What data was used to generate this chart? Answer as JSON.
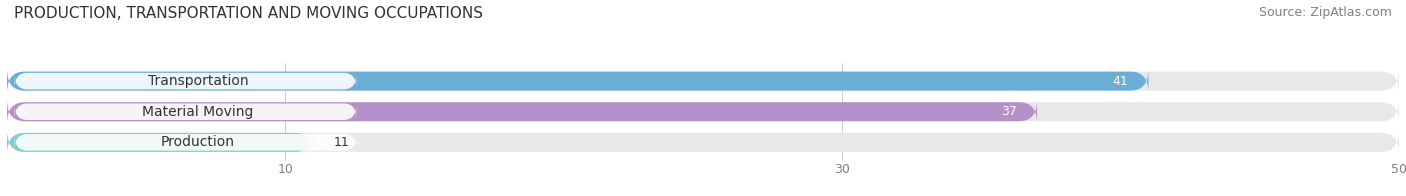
{
  "title": "PRODUCTION, TRANSPORTATION AND MOVING OCCUPATIONS",
  "source": "Source: ZipAtlas.com",
  "categories": [
    "Transportation",
    "Material Moving",
    "Production"
  ],
  "values": [
    41,
    37,
    11
  ],
  "bar_colors": [
    "#6aaed6",
    "#b490c8",
    "#7ececa"
  ],
  "bar_bg_color": "#e8e8e8",
  "xlim_min": 0,
  "xlim_max": 55,
  "data_max": 50,
  "xticks": [
    10,
    30,
    50
  ],
  "title_fontsize": 11,
  "source_fontsize": 9,
  "label_fontsize": 10,
  "value_fontsize": 9,
  "bar_height": 0.62,
  "background_color": "#ffffff",
  "label_bg_color": "#ffffff"
}
